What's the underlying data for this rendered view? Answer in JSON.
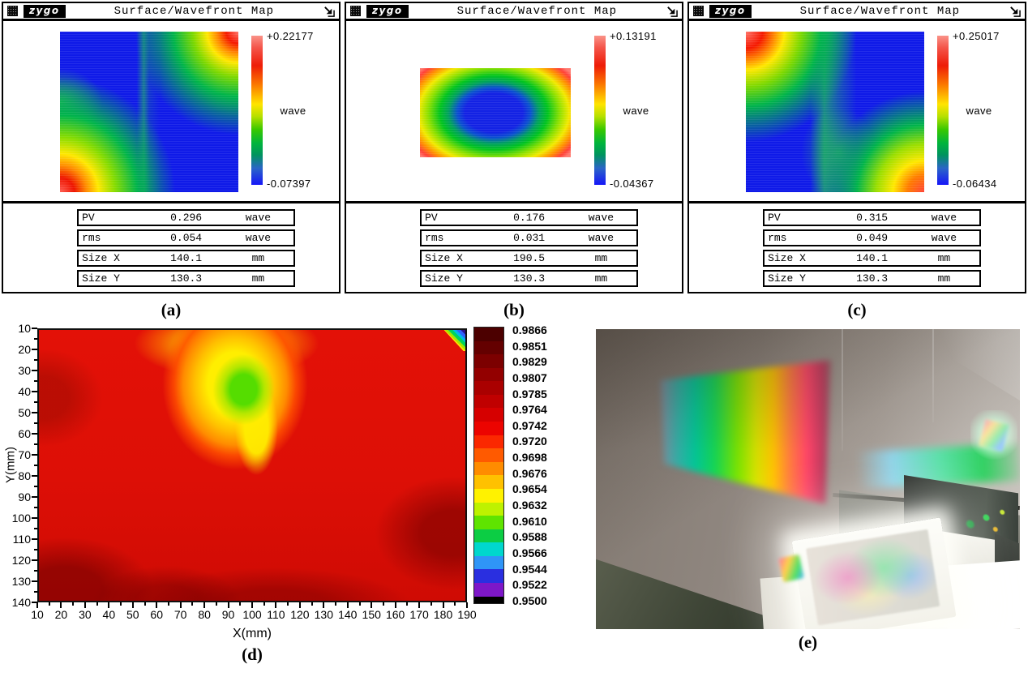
{
  "zygo_windows": [
    {
      "caption": "(a)",
      "titlebar": {
        "logo": "zygo",
        "title": "Surface/Wavefront Map",
        "close_icon": "close-box-icon",
        "pin_icon": "pushpin-icon"
      },
      "colorbar": {
        "max": "+0.22177",
        "unit": "wave",
        "min": "-0.07397"
      },
      "stats": [
        {
          "label": "PV",
          "value": "0.296",
          "unit": "wave"
        },
        {
          "label": "rms",
          "value": "0.054",
          "unit": "wave"
        },
        {
          "label": "Size X",
          "value": "140.1",
          "unit": "mm"
        },
        {
          "label": "Size Y",
          "value": "130.3",
          "unit": "mm"
        }
      ]
    },
    {
      "caption": "(b)",
      "titlebar": {
        "logo": "zygo",
        "title": "Surface/Wavefront Map",
        "close_icon": "close-box-icon",
        "pin_icon": "pushpin-icon"
      },
      "colorbar": {
        "max": "+0.13191",
        "unit": "wave",
        "min": "-0.04367"
      },
      "stats": [
        {
          "label": "PV",
          "value": "0.176",
          "unit": "wave"
        },
        {
          "label": "rms",
          "value": "0.031",
          "unit": "wave"
        },
        {
          "label": "Size X",
          "value": "190.5",
          "unit": "mm"
        },
        {
          "label": "Size Y",
          "value": "130.3",
          "unit": "mm"
        }
      ]
    },
    {
      "caption": "(c)",
      "titlebar": {
        "logo": "zygo",
        "title": "Surface/Wavefront Map",
        "close_icon": "close-box-icon",
        "pin_icon": "pushpin-icon"
      },
      "colorbar": {
        "max": "+0.25017",
        "unit": "wave",
        "min": "-0.06434"
      },
      "stats": [
        {
          "label": "PV",
          "value": "0.315",
          "unit": "wave"
        },
        {
          "label": "rms",
          "value": "0.049",
          "unit": "wave"
        },
        {
          "label": "Size X",
          "value": "140.1",
          "unit": "mm"
        },
        {
          "label": "Size Y",
          "value": "130.3",
          "unit": "mm"
        }
      ]
    }
  ],
  "chart_data": {
    "type": "heatmap",
    "panel_caption": "(d)",
    "xlabel": "X(mm)",
    "ylabel": "Y(mm)",
    "x_range": [
      10,
      190
    ],
    "y_range": [
      10,
      140
    ],
    "y_axis_reversed": true,
    "x_ticks": [
      10,
      20,
      30,
      40,
      50,
      60,
      70,
      80,
      90,
      100,
      110,
      120,
      130,
      140,
      150,
      160,
      170,
      180,
      190
    ],
    "y_ticks": [
      10,
      20,
      30,
      40,
      50,
      60,
      70,
      80,
      90,
      100,
      110,
      120,
      130,
      140
    ],
    "grid": false,
    "legend_position": "right-colorbar",
    "colorbar_tick_labels": [
      "0.9866",
      "0.9851",
      "0.9829",
      "0.9807",
      "0.9785",
      "0.9764",
      "0.9742",
      "0.9720",
      "0.9698",
      "0.9676",
      "0.9654",
      "0.9632",
      "0.9610",
      "0.9588",
      "0.9566",
      "0.9544",
      "0.9522",
      "0.9500"
    ],
    "colorbar_band_colors": [
      "#4c0000",
      "#640000",
      "#7c0000",
      "#930000",
      "#aa0000",
      "#c00000",
      "#d60000",
      "#ec0400",
      "#fb2800",
      "#ff5a00",
      "#ff8c00",
      "#ffc100",
      "#fff200",
      "#bef200",
      "#5fe400",
      "#0ccd44",
      "#00d7cd",
      "#2f95f7",
      "#2a2fe0",
      "#7d17c8",
      "#000000"
    ],
    "background_value_range": [
      0.976,
      0.986
    ],
    "features": [
      {
        "name": "local-minimum-region",
        "x_range": [
          60,
          130
        ],
        "y_range": [
          15,
          75
        ],
        "core_x": 100,
        "core_y": 40,
        "core_value": 0.963
      },
      {
        "name": "top-right-corner-defect",
        "x_range": [
          183,
          190
        ],
        "y_range": [
          10,
          16
        ],
        "min_value": 0.95
      }
    ]
  },
  "photo": {
    "caption": "(e)",
    "elements": [
      "wall",
      "projected-spectrum",
      "secondary-spectrum",
      "wall-glint",
      "shelf-edge",
      "projector",
      "projector-lens",
      "grating-plate",
      "table-top",
      "floor"
    ]
  }
}
